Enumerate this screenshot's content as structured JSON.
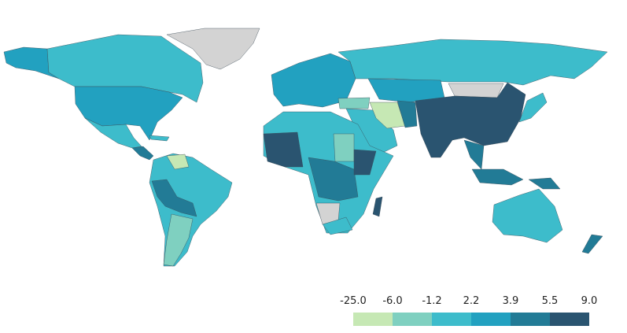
{
  "legend": {
    "bins": [
      {
        "value": -25,
        "label": "-25.0"
      },
      {
        "value": -6,
        "label": "-6.0"
      },
      -1.2,
      2.2,
      3.9,
      5.5,
      {
        "value": 9,
        "label": "9.0"
      }
    ],
    "colors": [
      "#c6e8b4",
      "#7fd0c0",
      "#3dbccb",
      "#22a1c0",
      "#227b96",
      "#2a5470"
    ]
  }
}
